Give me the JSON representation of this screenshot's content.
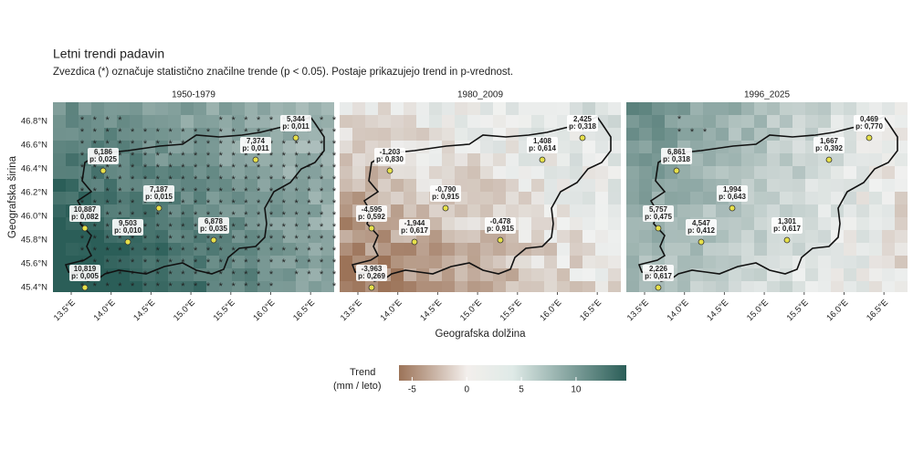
{
  "title": "Letni trendi padavin",
  "subtitle": "Zvezdica (*) označuje statistično značilne trende (p < 0.05). Postaje prikazujejo trend in p-vrednost.",
  "y_axis_label": "Geografska širina",
  "x_axis_label": "Geografska dolžina",
  "lat_ticks": [
    "46.8°N",
    "46.6°N",
    "46.4°N",
    "46.2°N",
    "46.0°N",
    "45.8°N",
    "45.6°N",
    "45.4°N"
  ],
  "lon_ticks": [
    "13.5°E",
    "14.0°E",
    "14.5°E",
    "15.0°E",
    "15.5°E",
    "16.0°E",
    "16.5°E"
  ],
  "panels": [
    {
      "title": "1950-1979",
      "stations": [
        {
          "trend": "6,186",
          "p": "p: 0,025"
        },
        {
          "trend": "5,344",
          "p": "p: 0,011"
        },
        {
          "trend": "7,374",
          "p": "p: 0,011"
        },
        {
          "trend": "7,187",
          "p": "p: 0,015"
        },
        {
          "trend": "10,887",
          "p": "p: 0,082"
        },
        {
          "trend": "9,503",
          "p": "p: 0,010"
        },
        {
          "trend": "6,878",
          "p": "p: 0,035"
        },
        {
          "trend": "10,819",
          "p": "p: 0,005"
        }
      ]
    },
    {
      "title": "1980_2009",
      "stations": [
        {
          "trend": "-1,203",
          "p": "p: 0,830"
        },
        {
          "trend": "2,425",
          "p": "p: 0,318"
        },
        {
          "trend": "1,408",
          "p": "p: 0,614"
        },
        {
          "trend": "-0,790",
          "p": "p: 0,915"
        },
        {
          "trend": "-4,595",
          "p": "p: 0,592"
        },
        {
          "trend": "-1,944",
          "p": "p: 0,617"
        },
        {
          "trend": "-0,478",
          "p": "p: 0,915"
        },
        {
          "trend": "-3,963",
          "p": "p: 0,269"
        }
      ]
    },
    {
      "title": "1996_2025",
      "stations": [
        {
          "trend": "6,861",
          "p": "p: 0,318"
        },
        {
          "trend": "0,469",
          "p": "p: 0,770"
        },
        {
          "trend": "1,667",
          "p": "p: 0,392"
        },
        {
          "trend": "1,994",
          "p": "p: 0,643"
        },
        {
          "trend": "5,757",
          "p": "p: 0,475"
        },
        {
          "trend": "4,547",
          "p": "p: 0,412"
        },
        {
          "trend": "1,301",
          "p": "p: 0,617"
        },
        {
          "trend": "2,226",
          "p": "p: 0,617"
        }
      ]
    }
  ],
  "legend": {
    "title": "Trend",
    "subtitle": "(mm / leto)",
    "lim": [
      -6.2,
      14.6
    ],
    "ticks": [
      -5,
      0,
      5,
      10
    ]
  }
}
